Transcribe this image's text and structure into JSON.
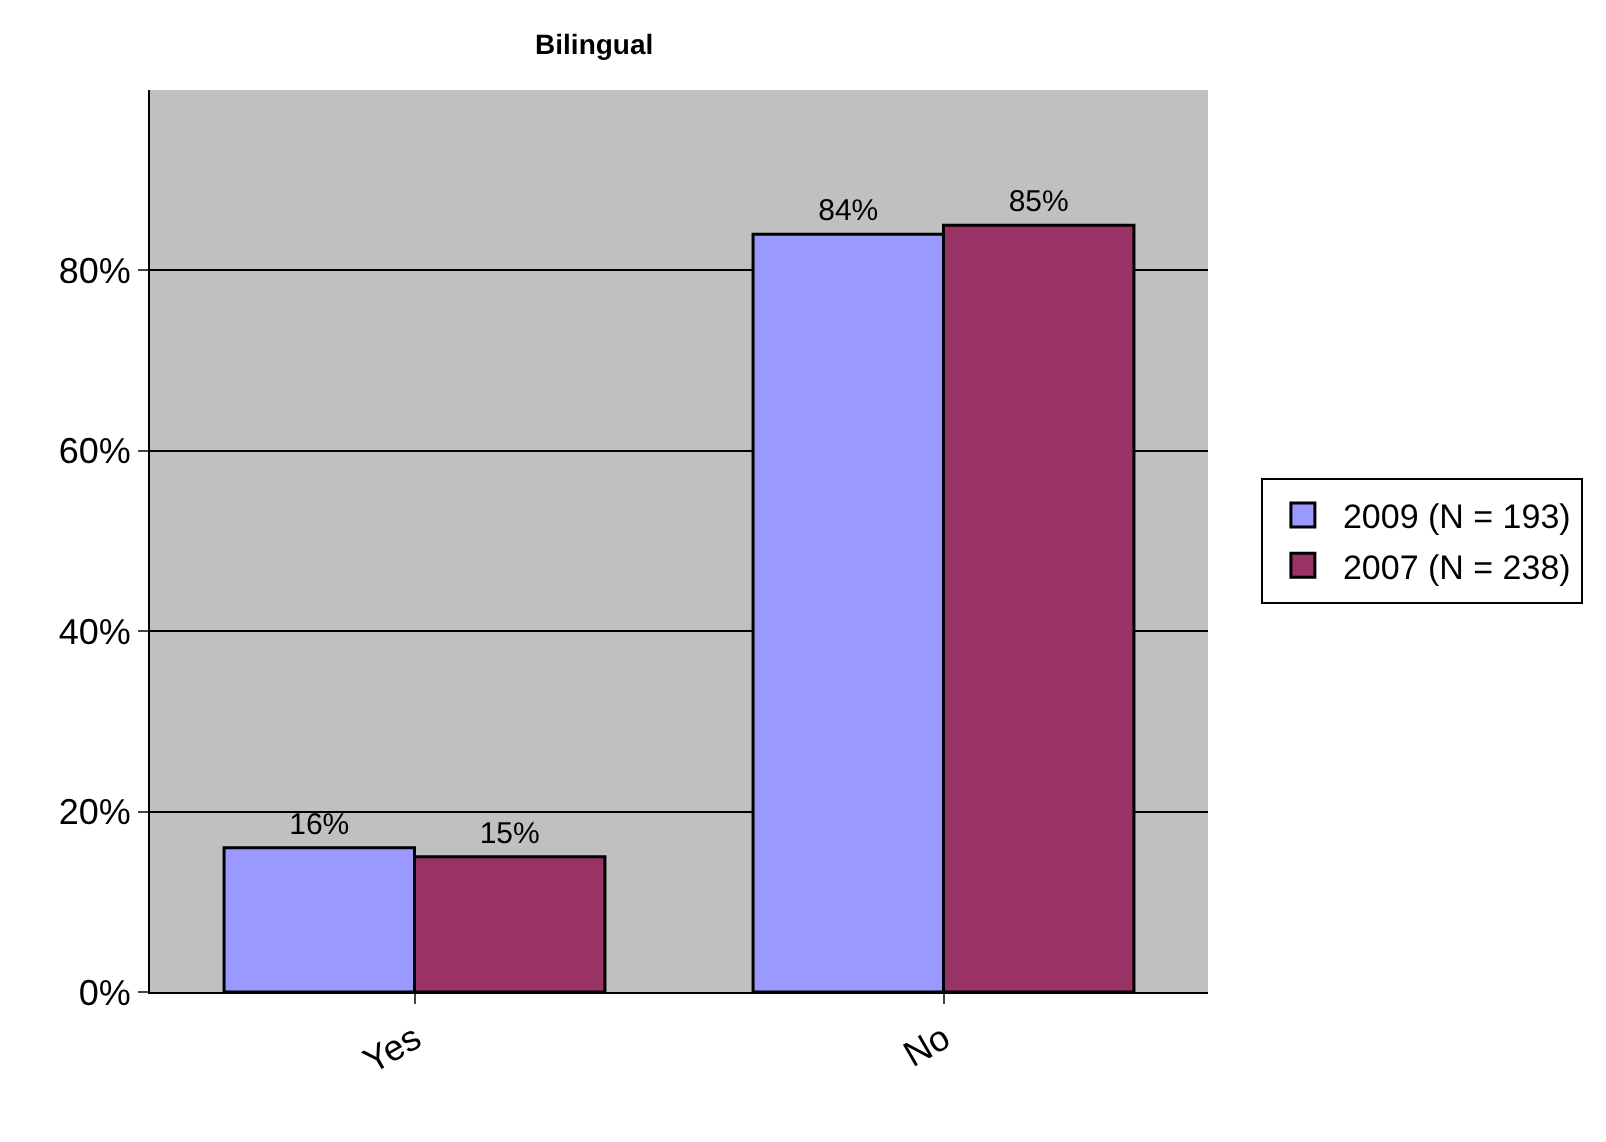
{
  "chart_data": {
    "type": "bar",
    "title": "Bilingual",
    "categories": [
      "Yes",
      "No"
    ],
    "series": [
      {
        "name": "2009 (N = 193)",
        "color": "#9999ff",
        "values": [
          16,
          84
        ],
        "value_labels": [
          "16%",
          "84%"
        ]
      },
      {
        "name": "2007 (N = 238)",
        "color": "#993366",
        "values": [
          15,
          85
        ],
        "value_labels": [
          "15%",
          "85%"
        ]
      }
    ],
    "ylim": [
      0,
      100
    ],
    "yticks": [
      {
        "value": 0,
        "label": "0%"
      },
      {
        "value": 20,
        "label": "20%"
      },
      {
        "value": 40,
        "label": "40%"
      },
      {
        "value": 60,
        "label": "60%"
      },
      {
        "value": 80,
        "label": "80%"
      }
    ],
    "grid": "y",
    "legend": "right"
  }
}
